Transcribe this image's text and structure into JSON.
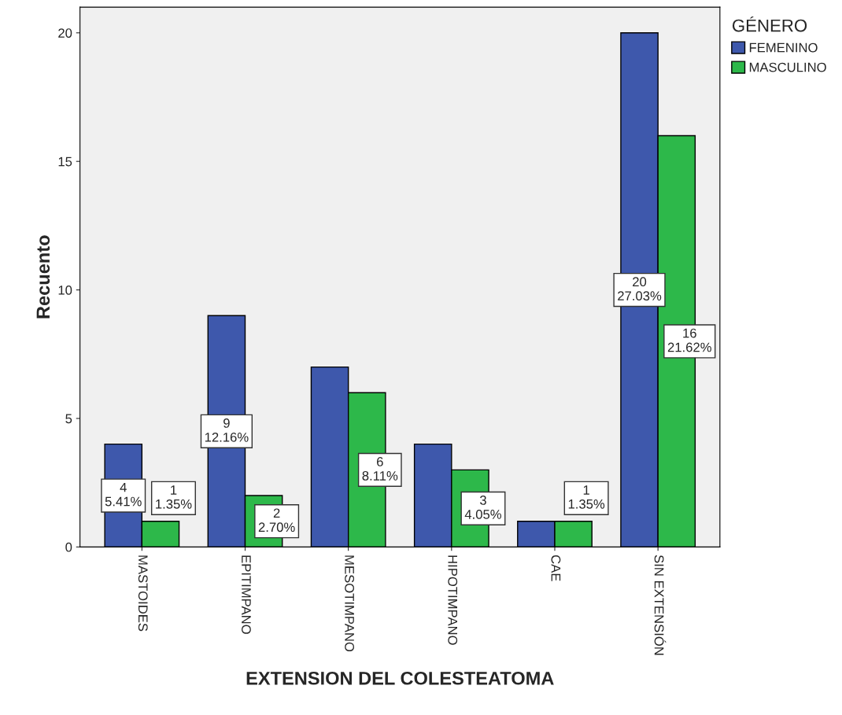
{
  "chart_data": {
    "type": "bar",
    "xlabel": "EXTENSION DEL COLESTEATOMA",
    "ylabel": "Recuento",
    "legend_title": "GÉNERO",
    "legend": "top right",
    "categories": [
      "MASTOIDES",
      "EPITIMPANO",
      "MESOTIMPANO",
      "HIPOTIMPANO",
      "CAE",
      "SIN EXTENSIÓN"
    ],
    "series": [
      {
        "name": "FEMENINO",
        "color": "#3e58ac",
        "values": [
          4,
          9,
          7,
          4,
          1,
          20
        ],
        "value_labels": [
          "4\n5.41%",
          "9\n12.16%",
          null,
          null,
          null,
          "20\n27.03%"
        ]
      },
      {
        "name": "MASCULINO",
        "color": "#2db84a",
        "values": [
          1,
          2,
          6,
          3,
          1,
          16
        ],
        "value_labels": [
          "1\n1.35%",
          "2\n2.70%",
          "6\n8.11%",
          "3\n4.05%",
          "1\n1.35%",
          "16\n21.62%"
        ]
      }
    ],
    "ylim": [
      0,
      21
    ],
    "yticks": [
      0,
      5,
      10,
      15,
      20
    ],
    "grid": false
  }
}
